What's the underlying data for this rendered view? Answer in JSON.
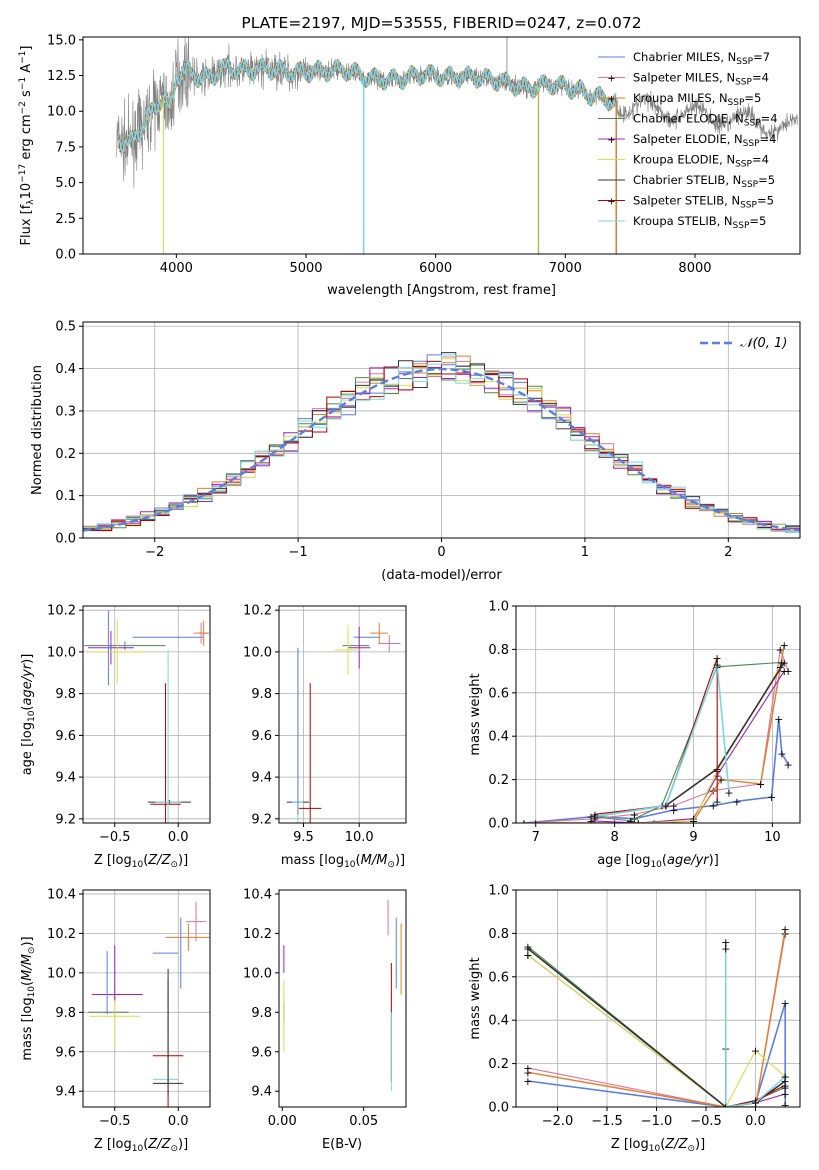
{
  "chart_data": [
    {
      "id": "spectrum",
      "type": "line",
      "title": "PLATE=2197, MJD=53555, FIBERID=0247, z=0.072",
      "xlabel": "wavelength [Angstrom, rest frame]",
      "ylabel": "Flux [f_λ10^-17 erg cm^-2 s^-1 A^-1]",
      "xlim": [
        3280,
        8810
      ],
      "ylim": [
        0,
        15.2
      ],
      "xticks": [
        4000,
        5000,
        6000,
        7000,
        8000
      ],
      "yticks": [
        0.0,
        2.5,
        5.0,
        7.5,
        10.0,
        12.5,
        15.0
      ],
      "grid": false,
      "legend_position": "top-right",
      "continuum": {
        "x": [
          3550,
          3600,
          3650,
          3700,
          3750,
          3800,
          3850,
          3900,
          3950,
          4000,
          4100,
          4200,
          4300,
          4400,
          4500,
          4700,
          4900,
          5100,
          5300,
          5500,
          5700,
          5900,
          6100,
          6300,
          6500,
          6700,
          6900,
          7100,
          7200,
          7300,
          7400
        ],
        "y": [
          8.0,
          7.7,
          7.8,
          8.5,
          9.0,
          9.8,
          10.5,
          11.0,
          10.0,
          12.5,
          12.8,
          12.2,
          12.6,
          13.1,
          12.8,
          13.0,
          12.7,
          12.8,
          12.9,
          12.3,
          12.2,
          12.6,
          12.4,
          12.4,
          12.1,
          11.6,
          11.9,
          11.5,
          11.1,
          10.9,
          10.6
        ]
      },
      "observed_range": [
        3540,
        8790
      ],
      "spikes": [
        {
          "x": 3900,
          "y": 0
        },
        {
          "x": 5445,
          "y": 0
        },
        {
          "x": 6795,
          "y": 0
        },
        {
          "x": 6550,
          "y": 15.2
        },
        {
          "x": 7395,
          "y": 0
        }
      ]
    },
    {
      "id": "residuals",
      "type": "step",
      "xlabel": "(data-model)/error",
      "ylabel": "Normed distribution",
      "xlim": [
        -2.5,
        2.5
      ],
      "ylim": [
        0,
        0.51
      ],
      "xticks": [
        -2,
        -1,
        0,
        1,
        2
      ],
      "yticks": [
        0.0,
        0.1,
        0.2,
        0.3,
        0.4,
        0.5
      ],
      "grid": true,
      "legend_position": "top-right",
      "reference_label": "𝒩(0, 1)",
      "bin_width": 0.1
    },
    {
      "id": "age_vs_Z",
      "type": "errorbar",
      "xlabel": "Z [log10(Z/Z⊙)]",
      "ylabel": "age [log10(age/yr)]",
      "xlim": [
        -0.75,
        0.25
      ],
      "ylim": [
        9.18,
        10.22
      ],
      "xticks": [
        -0.5,
        0.0
      ],
      "yticks": [
        9.2,
        9.4,
        9.6,
        9.8,
        10.0,
        10.2
      ],
      "grid": true,
      "points": [
        {
          "x": -0.08,
          "y": 10.07,
          "xerr": 0.28,
          "yerr": 0.0,
          "c": 0
        },
        {
          "x": 0.18,
          "y": 10.09,
          "xerr": 0.06,
          "yerr": 0.05,
          "c": 1
        },
        {
          "x": 0.2,
          "y": 10.09,
          "xerr": 0.04,
          "yerr": 0.06,
          "c": 2
        },
        {
          "x": -0.42,
          "y": 10.03,
          "xerr": 0.32,
          "yerr": 0.02,
          "c": 3
        },
        {
          "x": -0.53,
          "y": 10.02,
          "xerr": 0.18,
          "yerr": 0.08,
          "c": 4
        },
        {
          "x": -0.48,
          "y": 10.0,
          "xerr": 0.22,
          "yerr": 0.15,
          "c": 5
        },
        {
          "x": -0.07,
          "y": 9.28,
          "xerr": 0.17,
          "yerr": 0.01,
          "c": 6
        },
        {
          "x": -0.1,
          "y": 9.27,
          "xerr": 0.12,
          "yerr": 0.58,
          "c": 7
        },
        {
          "x": -0.08,
          "y": 9.28,
          "xerr": 0.1,
          "yerr": 0.73,
          "c": 8
        },
        {
          "x": -0.55,
          "y": 10.02,
          "xerr": 0.02,
          "yerr": 0.18,
          "c": 0
        }
      ]
    },
    {
      "id": "age_vs_mass",
      "type": "errorbar",
      "xlabel": "mass [log10(M/M⊙)]",
      "ylabel": "",
      "xlim": [
        9.28,
        10.42
      ],
      "ylim": [
        9.18,
        10.22
      ],
      "xticks": [
        9.5,
        10.0
      ],
      "yticks": [
        9.2,
        9.4,
        9.6,
        9.8,
        10.0,
        10.2
      ],
      "grid": true,
      "points": [
        {
          "x": 10.07,
          "y": 10.07,
          "xerr": 0.12,
          "yerr": 0.0,
          "c": 0
        },
        {
          "x": 10.27,
          "y": 10.04,
          "xerr": 0.1,
          "yerr": 0.04,
          "c": 1
        },
        {
          "x": 10.18,
          "y": 10.09,
          "xerr": 0.08,
          "yerr": 0.05,
          "c": 2
        },
        {
          "x": 9.97,
          "y": 10.03,
          "xerr": 0.12,
          "yerr": 0.0,
          "c": 3
        },
        {
          "x": 10.0,
          "y": 10.02,
          "xerr": 0.1,
          "yerr": 0.1,
          "c": 4
        },
        {
          "x": 9.9,
          "y": 10.01,
          "xerr": 0.12,
          "yerr": 0.12,
          "c": 5
        },
        {
          "x": 9.45,
          "y": 9.28,
          "xerr": 0.1,
          "yerr": 0.0,
          "c": 6
        },
        {
          "x": 9.56,
          "y": 9.25,
          "xerr": 0.1,
          "yerr": 0.6,
          "c": 7
        },
        {
          "x": 9.45,
          "y": 9.28,
          "xerr": 0.05,
          "yerr": 0.74,
          "c": 8
        },
        {
          "x": 9.45,
          "y": 9.62,
          "xerr": 0.0,
          "yerr": 0.4,
          "c": 0
        }
      ]
    },
    {
      "id": "weight_vs_age",
      "type": "line",
      "xlabel": "age [log10(age/yr)]",
      "ylabel": "mass weight",
      "xlim": [
        6.75,
        10.35
      ],
      "ylim": [
        0,
        1.0
      ],
      "xticks": [
        7,
        8,
        9,
        10
      ],
      "yticks": [
        0.0,
        0.2,
        0.4,
        0.6,
        0.8,
        1.0
      ],
      "grid": true,
      "series": [
        {
          "c": 0,
          "lw": 1.6,
          "x": [
            6.85,
            7.75,
            8.25,
            8.75,
            9.25,
            9.55,
            9.99,
            10.08,
            10.12,
            10.2
          ],
          "y": [
            0.0,
            0.03,
            0.02,
            0.06,
            0.08,
            0.1,
            0.12,
            0.48,
            0.32,
            0.27
          ]
        },
        {
          "c": 1,
          "lw": 1.1,
          "x": [
            6.85,
            7.75,
            8.25,
            8.75,
            9.25,
            9.85,
            10.1,
            10.2
          ],
          "y": [
            0.0,
            0.02,
            0.04,
            0.08,
            0.15,
            0.18,
            0.8,
            0.7
          ]
        },
        {
          "c": 2,
          "lw": 1.4,
          "x": [
            7.0,
            8.0,
            8.5,
            9.0,
            9.35,
            9.85,
            10.15
          ],
          "y": [
            0.0,
            0.0,
            0.0,
            0.01,
            0.2,
            0.18,
            0.82
          ]
        },
        {
          "c": 3,
          "lw": 1.1,
          "x": [
            7.7,
            8.2,
            8.6,
            9.3,
            10.12
          ],
          "y": [
            0.03,
            0.01,
            0.08,
            0.72,
            0.74
          ]
        },
        {
          "c": 4,
          "lw": 1.1,
          "x": [
            7.7,
            8.3,
            9.0,
            9.3,
            10.15
          ],
          "y": [
            0.01,
            0.0,
            0.02,
            0.22,
            0.7
          ]
        },
        {
          "c": 5,
          "lw": 1.1,
          "x": [
            7.7,
            8.3,
            9.0,
            9.3,
            10.1
          ],
          "y": [
            0.0,
            0.0,
            0.01,
            0.24,
            0.72
          ]
        },
        {
          "c": 6,
          "lw": 1.6,
          "x": [
            7.75,
            8.65,
            9.3,
            10.15
          ],
          "y": [
            0.03,
            0.08,
            0.25,
            0.74
          ]
        },
        {
          "c": 7,
          "lw": 1.1,
          "x": [
            7.75,
            8.65,
            9.3,
            9.3
          ],
          "y": [
            0.04,
            0.08,
            0.76,
            0.1
          ]
        },
        {
          "c": 8,
          "lw": 1.6,
          "x": [
            7.75,
            8.65,
            9.3,
            9.45
          ],
          "y": [
            0.03,
            0.08,
            0.73,
            0.14
          ]
        }
      ]
    },
    {
      "id": "mass_vs_Z",
      "type": "errorbar",
      "xlabel": "Z [log10(Z/Z⊙)]",
      "ylabel": "mass [log10(M/M⊙)]",
      "xlim": [
        -0.75,
        0.25
      ],
      "ylim": [
        9.32,
        10.42
      ],
      "xticks": [
        -0.5,
        0.0
      ],
      "yticks": [
        9.4,
        9.6,
        9.8,
        10.0,
        10.2,
        10.4
      ],
      "grid": true,
      "points": [
        {
          "x": -0.1,
          "y": 10.1,
          "xerr": 0.1,
          "yerr": 0.0,
          "c": 0
        },
        {
          "x": 0.14,
          "y": 10.26,
          "xerr": 0.08,
          "yerr": 0.1,
          "c": 1
        },
        {
          "x": 0.08,
          "y": 10.18,
          "xerr": 0.18,
          "yerr": 0.07,
          "c": 2
        },
        {
          "x": -0.55,
          "y": 9.8,
          "xerr": 0.16,
          "yerr": 0.0,
          "c": 3
        },
        {
          "x": -0.48,
          "y": 9.89,
          "xerr": 0.2,
          "yerr": 0.0,
          "c": 4
        },
        {
          "x": -0.5,
          "y": 9.78,
          "xerr": 0.2,
          "yerr": 0.16,
          "c": 5
        },
        {
          "x": -0.08,
          "y": 9.44,
          "xerr": 0.12,
          "yerr": 0.0,
          "c": 6
        },
        {
          "x": -0.08,
          "y": 9.58,
          "xerr": 0.12,
          "yerr": 0.38,
          "c": 7
        },
        {
          "x": -0.1,
          "y": 9.46,
          "xerr": 0.1,
          "yerr": 0.0,
          "c": 8
        },
        {
          "x": -0.56,
          "y": 9.95,
          "xerr": 0.0,
          "yerr": 0.16,
          "c": 0
        },
        {
          "x": -0.5,
          "y": 10.0,
          "xerr": 0.0,
          "yerr": 0.14,
          "c": 4
        },
        {
          "x": 0.02,
          "y": 10.1,
          "xerr": 0.0,
          "yerr": 0.18,
          "c": 0
        },
        {
          "x": -0.08,
          "y": 9.7,
          "xerr": 0.0,
          "yerr": 0.32,
          "c": 6
        }
      ]
    },
    {
      "id": "mass_vs_EBV",
      "type": "errorbar",
      "xlabel": "E(B-V)",
      "ylabel": "",
      "xlim": [
        -0.002,
        0.076
      ],
      "ylim": [
        9.32,
        10.42
      ],
      "xticks": [
        0.0,
        0.05
      ],
      "yticks": [
        9.4,
        9.6,
        9.8,
        10.0,
        10.2,
        10.4
      ],
      "grid": false,
      "points": [
        {
          "x": 0.07,
          "y": 10.1,
          "xerr": 0.0,
          "yerr": 0.18,
          "c": 0
        },
        {
          "x": 0.065,
          "y": 10.28,
          "xerr": 0.0,
          "yerr": 0.09,
          "c": 1
        },
        {
          "x": 0.073,
          "y": 10.07,
          "xerr": 0.0,
          "yerr": 0.18,
          "c": 2
        },
        {
          "x": 0.001,
          "y": 9.8,
          "xerr": 0.0,
          "yerr": 0.05,
          "c": 3
        },
        {
          "x": 0.001,
          "y": 10.07,
          "xerr": 0.0,
          "yerr": 0.07,
          "c": 4
        },
        {
          "x": 0.001,
          "y": 9.78,
          "xerr": 0.0,
          "yerr": 0.18,
          "c": 5
        },
        {
          "x": 0.068,
          "y": 9.45,
          "xerr": 0.0,
          "yerr": 0.0,
          "c": 6
        },
        {
          "x": 0.067,
          "y": 9.75,
          "xerr": 0.0,
          "yerr": 0.3,
          "c": 7
        },
        {
          "x": 0.067,
          "y": 9.6,
          "xerr": 0.0,
          "yerr": 0.2,
          "c": 8
        }
      ]
    },
    {
      "id": "weight_vs_Z",
      "type": "line",
      "xlabel": "Z [log10(Z/Z⊙)]",
      "ylabel": "mass weight",
      "xlim": [
        -2.42,
        0.45
      ],
      "ylim": [
        0,
        1.0
      ],
      "xticks": [
        -2.0,
        -1.5,
        -1.0,
        -0.5,
        0.0
      ],
      "yticks": [
        0.0,
        0.2,
        0.4,
        0.6,
        0.8,
        1.0
      ],
      "grid": true,
      "series": [
        {
          "c": 0,
          "lw": 1.6,
          "x": [
            -2.3,
            -0.3,
            0.0,
            0.3,
            0.3
          ],
          "y": [
            0.12,
            0.0,
            0.02,
            0.48,
            0.01
          ]
        },
        {
          "c": 0,
          "lw": 1.6,
          "x": [
            -0.3,
            -0.3
          ],
          "y": [
            0.0,
            0.27
          ]
        },
        {
          "c": 1,
          "lw": 1.1,
          "x": [
            -2.3,
            -0.3,
            0.0,
            0.3
          ],
          "y": [
            0.18,
            0.0,
            0.0,
            0.8
          ]
        },
        {
          "c": 2,
          "lw": 1.4,
          "x": [
            -2.3,
            -0.3,
            0.0,
            0.3
          ],
          "y": [
            0.16,
            0.0,
            0.0,
            0.82
          ]
        },
        {
          "c": 3,
          "lw": 1.1,
          "x": [
            -2.3,
            -0.3,
            0.0,
            0.3
          ],
          "y": [
            0.74,
            0.0,
            0.03,
            0.09
          ]
        },
        {
          "c": 4,
          "lw": 1.1,
          "x": [
            -2.3,
            -0.3,
            0.0,
            0.3
          ],
          "y": [
            0.7,
            0.0,
            0.02,
            0.06
          ]
        },
        {
          "c": 5,
          "lw": 1.1,
          "x": [
            -2.3,
            -0.3,
            0.0,
            0.3
          ],
          "y": [
            0.7,
            0.0,
            0.26,
            0.14
          ]
        },
        {
          "c": 6,
          "lw": 1.6,
          "x": [
            -2.3,
            -0.3,
            0.0,
            0.3
          ],
          "y": [
            0.73,
            0.0,
            0.02,
            0.12
          ]
        },
        {
          "c": 7,
          "lw": 1.1,
          "x": [
            -0.3,
            -0.3,
            0.0,
            0.3
          ],
          "y": [
            0.76,
            0.0,
            0.03,
            0.1
          ]
        },
        {
          "c": 8,
          "lw": 1.4,
          "x": [
            -0.3,
            -0.3,
            0.0,
            0.3
          ],
          "y": [
            0.73,
            0.0,
            0.02,
            0.14
          ]
        }
      ]
    }
  ],
  "legend": [
    {
      "name": "Chabrier MILES",
      "nssp": "7",
      "color": "#5a7fe0"
    },
    {
      "name": "Salpeter MILES",
      "nssp": "4",
      "color": "#e0739a"
    },
    {
      "name": "Kroupa MILES",
      "nssp": "5",
      "color": "#e07f2a"
    },
    {
      "name": "Chabrier ELODIE",
      "nssp": "4",
      "color": "#4d8a4d"
    },
    {
      "name": "Salpeter ELODIE",
      "nssp": "4",
      "color": "#a020c0"
    },
    {
      "name": "Kroupa ELODIE",
      "nssp": "4",
      "color": "#d6e04a"
    },
    {
      "name": "Chabrier STELIB",
      "nssp": "5",
      "color": "#333333"
    },
    {
      "name": "Salpeter STELIB",
      "nssp": "5",
      "color": "#b30000"
    },
    {
      "name": "Kroupa STELIB",
      "nssp": "5",
      "color": "#7ad8e0"
    }
  ],
  "colors": {
    "observed": "#7f7f7f",
    "reference_curve": "#5a7fe0",
    "grid": "#b0b0b0"
  }
}
